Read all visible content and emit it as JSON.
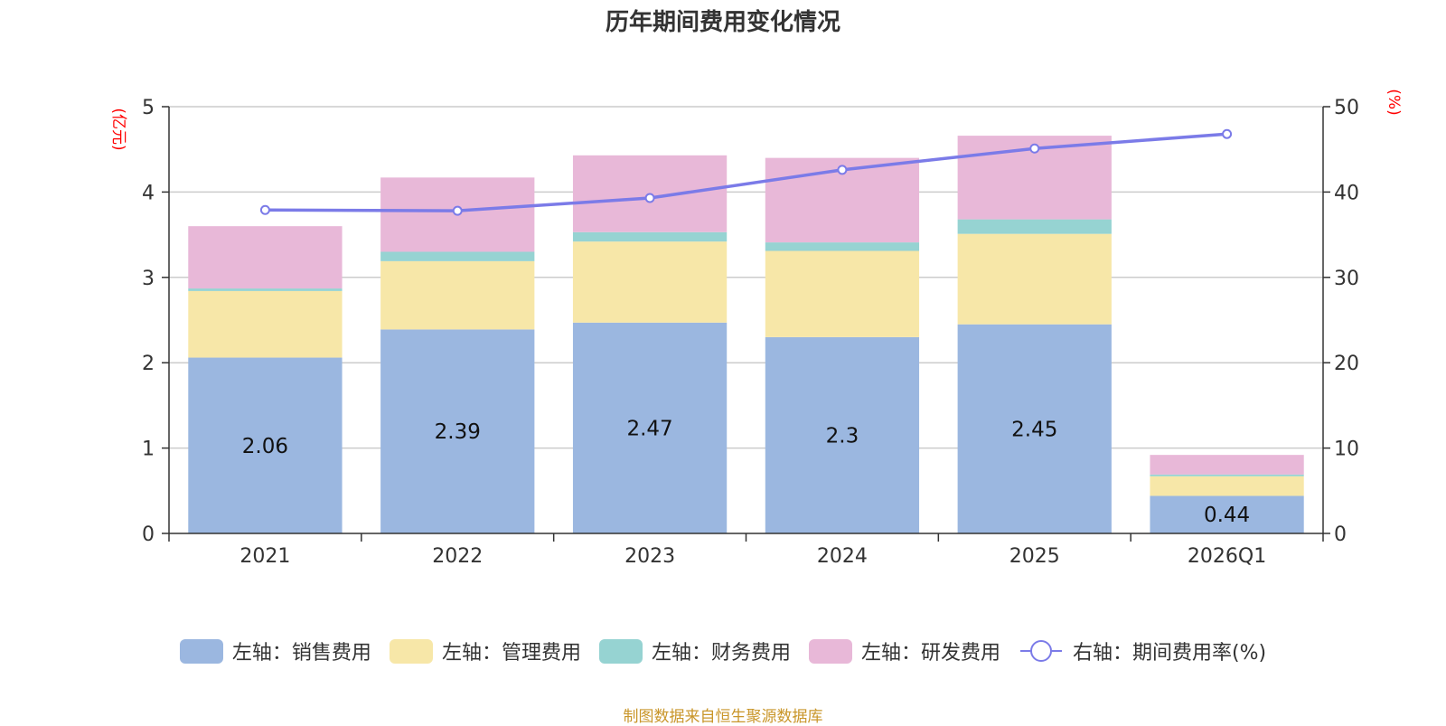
{
  "chart_data": {
    "type": "bar",
    "title": "历年期间费用变化情况",
    "categories": [
      "2021",
      "2022",
      "2023",
      "2024",
      "2025",
      "2026Q1"
    ],
    "left_axis": {
      "unit": "(亿元)",
      "ylim": [
        0,
        5
      ],
      "ticks": [
        "0",
        "1",
        "2",
        "3",
        "4",
        "5"
      ]
    },
    "right_axis": {
      "unit": "(%)",
      "ylim": [
        0,
        50
      ],
      "ticks": [
        "0",
        "10",
        "20",
        "30",
        "40",
        "50"
      ]
    },
    "series": [
      {
        "name": "左轴：销售费用",
        "type": "bar",
        "stack": "total",
        "axis": "left",
        "color": "#9bb7e0",
        "values": [
          2.06,
          2.39,
          2.47,
          2.3,
          2.45,
          0.44
        ],
        "labels": [
          "2.06",
          "2.39",
          "2.47",
          "2.3",
          "2.45",
          "0.44"
        ]
      },
      {
        "name": "左轴：管理费用",
        "type": "bar",
        "stack": "total",
        "axis": "left",
        "color": "#f7e7a8",
        "values": [
          0.78,
          0.8,
          0.95,
          1.01,
          1.06,
          0.23
        ]
      },
      {
        "name": "左轴：财务费用",
        "type": "bar",
        "stack": "total",
        "axis": "left",
        "color": "#96d3d2",
        "values": [
          0.03,
          0.11,
          0.11,
          0.1,
          0.17,
          0.02
        ]
      },
      {
        "name": "左轴：研发费用",
        "type": "bar",
        "stack": "total",
        "axis": "left",
        "color": "#e8b8d8",
        "values": [
          0.73,
          0.87,
          0.9,
          0.99,
          0.98,
          0.23
        ]
      },
      {
        "name": "右轴：期间费用率(%)",
        "type": "line",
        "axis": "right",
        "color": "#7b7be8",
        "values": [
          37.9,
          37.8,
          39.3,
          42.6,
          45.1,
          46.8
        ]
      }
    ],
    "grid": true,
    "legend_position": "bottom"
  },
  "source": "制图数据来自恒生聚源数据库"
}
